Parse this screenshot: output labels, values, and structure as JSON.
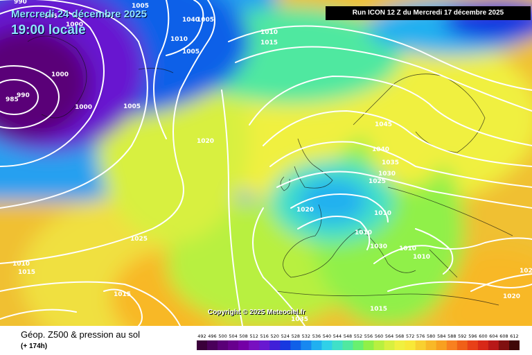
{
  "header": {
    "valid_date": "Mercredi 24 décembre 2025",
    "local_time": "19:00 locale",
    "run_info": "Run ICON 12 Z du Mercredi 17 décembre 2025"
  },
  "footer": {
    "parameter": "Géop. Z500 & pression au sol",
    "lead_time": "(+ 174h)",
    "copyright": "Copyright © 2025 Meteociel.fr"
  },
  "legend": {
    "values": [
      "492",
      "496",
      "500",
      "504",
      "508",
      "512",
      "516",
      "520",
      "524",
      "528",
      "532",
      "536",
      "540",
      "544",
      "548",
      "552",
      "556",
      "560",
      "564",
      "568",
      "572",
      "576",
      "580",
      "584",
      "588",
      "592",
      "596",
      "600",
      "604",
      "608",
      "612"
    ],
    "colors": [
      "#3a003a",
      "#4a005a",
      "#5a0078",
      "#68008e",
      "#7400a6",
      "#7810c0",
      "#6818d0",
      "#4020d8",
      "#1838e0",
      "#1060e8",
      "#1888f0",
      "#20b0f0",
      "#30d0e8",
      "#40e0c8",
      "#50e8a0",
      "#68f070",
      "#90f048",
      "#b8f040",
      "#d8f040",
      "#f0f040",
      "#f8e838",
      "#f8d030",
      "#f8b828",
      "#f8a020",
      "#f88020",
      "#f06018",
      "#e84018",
      "#d82818",
      "#b81818",
      "#801010",
      "#400808"
    ]
  },
  "map": {
    "isobar_labels": [
      "990",
      "995",
      "1000",
      "1005",
      "1010",
      "1015",
      "1020",
      "1025",
      "1030",
      "1035",
      "1040",
      "1045",
      "985",
      "990",
      "995",
      "1000",
      "1000",
      "1005",
      "1005",
      "1005",
      "1010",
      "1010",
      "1010",
      "1010",
      "1010",
      "1010",
      "1015",
      "1015",
      "1015",
      "1020",
      "1020",
      "1025",
      "1025",
      "1030",
      "1035",
      "1040",
      "1045"
    ]
  }
}
